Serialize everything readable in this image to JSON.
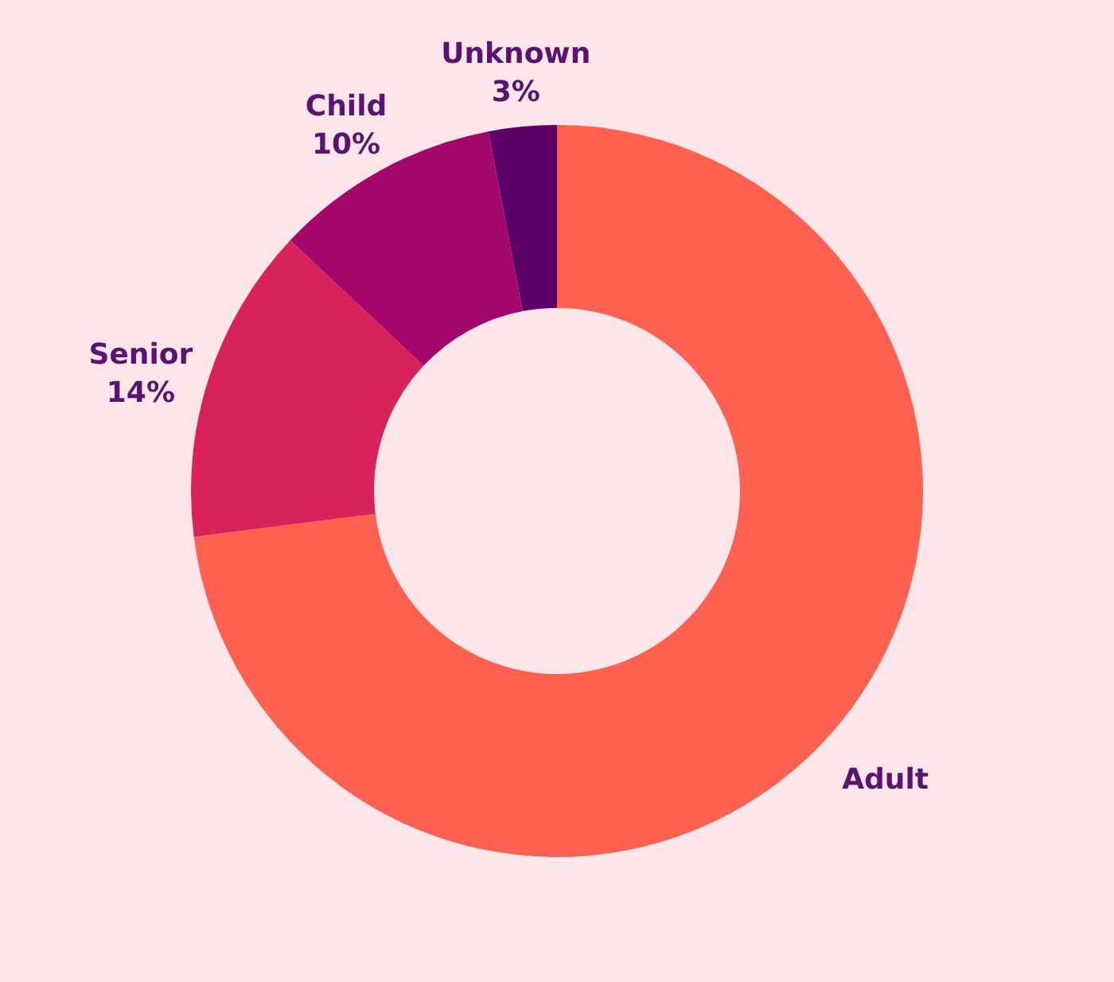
{
  "chart_data": {
    "type": "donut",
    "categories": [
      "Adult",
      "Senior",
      "Child",
      "Unknown"
    ],
    "values": [
      73,
      14,
      10,
      3
    ],
    "colors": [
      "#ff6150",
      "#d8235a",
      "#a3076b",
      "#5c0068"
    ],
    "value_labels": [
      null,
      "14%",
      "10%",
      "3%"
    ]
  }
}
